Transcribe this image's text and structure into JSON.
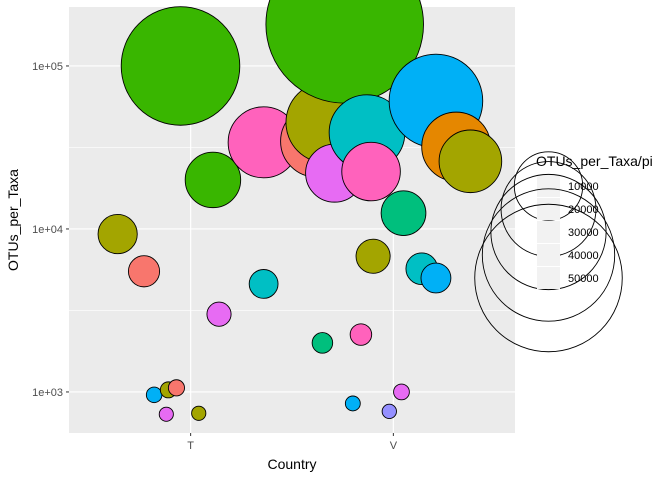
{
  "chart_data": {
    "type": "scatter",
    "xlabel": "Country",
    "ylabel": "OTUs_per_Taxa",
    "categories": [
      "T",
      "V"
    ],
    "y_scale": "log10",
    "y_ticks": [
      {
        "value": 1000,
        "label": "1e+03"
      },
      {
        "value": 10000,
        "label": "1e+04"
      },
      {
        "value": 100000,
        "label": "1e+05"
      }
    ],
    "ylim": [
      560,
      230000
    ],
    "grid": true,
    "legend": {
      "title": "OTUs_per_Taxa/pi",
      "placement": "right",
      "entries": [
        {
          "value": 10000,
          "label": "10000"
        },
        {
          "value": 20000,
          "label": "20000"
        },
        {
          "value": 30000,
          "label": "30000"
        },
        {
          "value": 40000,
          "label": "40000"
        },
        {
          "value": 50000,
          "label": "50000"
        }
      ]
    },
    "points": [
      {
        "x": -0.36,
        "y": 9300,
        "size": 2960,
        "fill": "#A3A500"
      },
      {
        "x": -0.23,
        "y": 5500,
        "size": 1750,
        "fill": "#F8766D"
      },
      {
        "x": -0.18,
        "y": 960,
        "size": 306,
        "fill": "#00B0F6"
      },
      {
        "x": -0.12,
        "y": 730,
        "size": 232,
        "fill": "#E76BF3"
      },
      {
        "x": -0.11,
        "y": 1030,
        "size": 328,
        "fill": "#A3A500"
      },
      {
        "x": -0.07,
        "y": 1060,
        "size": 337,
        "fill": "#F8766D"
      },
      {
        "x": -0.05,
        "y": 100000,
        "size": 31830,
        "fill": "#39B600"
      },
      {
        "x": 0.04,
        "y": 740,
        "size": 236,
        "fill": "#A3A500"
      },
      {
        "x": 0.11,
        "y": 20000,
        "size": 6370,
        "fill": "#39B600"
      },
      {
        "x": 0.14,
        "y": 3000,
        "size": 955,
        "fill": "#E76BF3"
      },
      {
        "x": 0.36,
        "y": 4600,
        "size": 1460,
        "fill": "#00BFC4"
      },
      {
        "x": 0.36,
        "y": 34000,
        "size": 10820,
        "fill": "#FF62BC"
      },
      {
        "x": 0.62,
        "y": 34500,
        "size": 10980,
        "fill": "#F8766D"
      },
      {
        "x": 0.65,
        "y": 2000,
        "size": 637,
        "fill": "#00BF7D"
      },
      {
        "x": 0.67,
        "y": 45000,
        "size": 14320,
        "fill": "#A3A500"
      },
      {
        "x": 0.71,
        "y": 22000,
        "size": 7000,
        "fill": "#E76BF3"
      },
      {
        "x": 0.76,
        "y": 180000,
        "size": 57300,
        "fill": "#39B600"
      },
      {
        "x": 0.8,
        "y": 850,
        "size": 270,
        "fill": "#00B0F6"
      },
      {
        "x": 0.84,
        "y": 2250,
        "size": 716,
        "fill": "#FF62BC"
      },
      {
        "x": 0.87,
        "y": 39000,
        "size": 12410,
        "fill": "#00BFC4"
      },
      {
        "x": 0.89,
        "y": 22500,
        "size": 7160,
        "fill": "#FF62BC"
      },
      {
        "x": 0.9,
        "y": 6800,
        "size": 2160,
        "fill": "#A3A500"
      },
      {
        "x": 0.98,
        "y": 760,
        "size": 242,
        "fill": "#9590FF"
      },
      {
        "x": 1.04,
        "y": 1000,
        "size": 318,
        "fill": "#E76BF3"
      },
      {
        "x": 1.05,
        "y": 12500,
        "size": 3980,
        "fill": "#00BF7D"
      },
      {
        "x": 1.14,
        "y": 5700,
        "size": 1810,
        "fill": "#00BFC4"
      },
      {
        "x": 1.21,
        "y": 5000,
        "size": 1590,
        "fill": "#00B0F6"
      },
      {
        "x": 1.21,
        "y": 61000,
        "size": 19420,
        "fill": "#00B0F6"
      },
      {
        "x": 1.31,
        "y": 32000,
        "size": 10190,
        "fill": "#E58700"
      },
      {
        "x": 1.38,
        "y": 26000,
        "size": 8280,
        "fill": "#A3A500"
      }
    ]
  }
}
